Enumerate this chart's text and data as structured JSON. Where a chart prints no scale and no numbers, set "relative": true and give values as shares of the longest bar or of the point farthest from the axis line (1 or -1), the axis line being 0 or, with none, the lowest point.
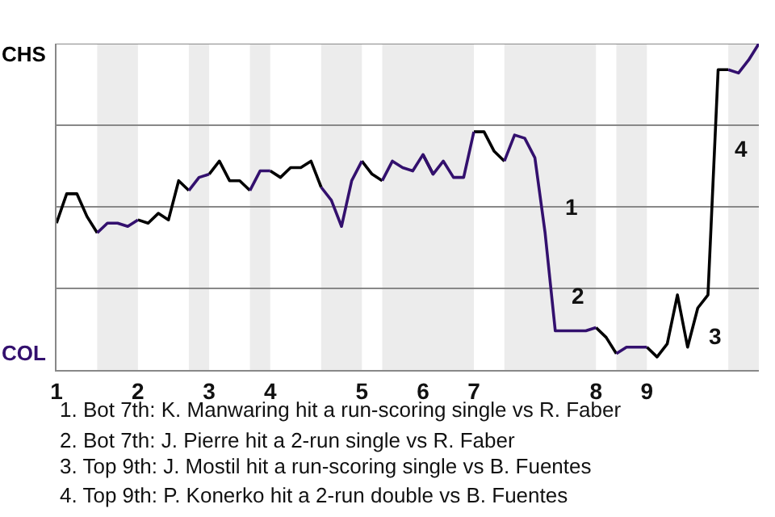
{
  "chart_data": {
    "type": "line",
    "relative": true,
    "categories": [
      "1",
      null,
      null,
      null,
      null,
      null,
      null,
      null,
      "2",
      null,
      null,
      null,
      null,
      null,
      null,
      "3",
      null,
      null,
      null,
      null,
      null,
      "4",
      null,
      null,
      null,
      null,
      null,
      null,
      null,
      null,
      "5",
      null,
      null,
      null,
      null,
      null,
      "6",
      null,
      null,
      null,
      null,
      "7",
      null,
      null,
      null,
      null,
      null,
      null,
      null,
      null,
      null,
      null,
      null,
      "8",
      null,
      null,
      null,
      null,
      "9",
      null,
      null,
      null,
      null,
      null,
      null,
      null,
      null,
      null,
      null,
      null
    ],
    "marker": "none",
    "line_style": "solid",
    "series": [
      {
        "color": "#000000",
        "values": [
          0.45,
          0.54,
          0.54,
          0.47,
          0.42,
          null,
          null,
          null,
          0.46,
          0.45,
          0.48,
          0.46,
          0.58,
          0.55,
          null,
          0.6,
          0.64,
          0.58,
          0.58,
          0.55,
          null,
          0.61,
          0.59,
          0.62,
          0.62,
          0.64,
          0.56,
          null,
          null,
          null,
          0.64,
          0.6,
          0.58,
          null,
          null,
          null,
          0.66,
          0.6,
          null,
          null,
          null,
          0.73,
          0.73,
          0.67,
          0.64,
          null,
          null,
          null,
          null,
          null,
          null,
          null,
          null,
          0.13,
          0.1,
          0.05,
          null,
          null,
          0.07,
          0.04,
          0.08,
          0.23,
          0.07,
          0.19,
          0.23,
          0.92,
          0.92,
          null,
          null,
          null
        ]
      },
      {
        "color": "#33106e",
        "values": [
          null,
          null,
          null,
          null,
          0.42,
          0.45,
          0.45,
          0.44,
          0.46,
          null,
          null,
          null,
          null,
          0.55,
          0.59,
          0.6,
          null,
          null,
          null,
          0.55,
          0.61,
          0.61,
          null,
          null,
          null,
          null,
          0.56,
          0.52,
          0.44,
          0.58,
          0.64,
          null,
          0.58,
          0.64,
          0.62,
          0.61,
          0.66,
          0.6,
          0.64,
          0.59,
          0.59,
          0.73,
          null,
          null,
          0.64,
          0.72,
          0.71,
          0.65,
          0.42,
          0.12,
          0.12,
          0.12,
          0.12,
          0.13,
          null,
          0.05,
          0.07,
          0.07,
          0.07,
          null,
          null,
          null,
          null,
          null,
          null,
          null,
          0.92,
          0.91,
          0.95,
          1.0
        ]
      }
    ],
    "ref_lines": [
      {
        "axis": "y",
        "value": 0.25,
        "label": null,
        "color": "#888888"
      },
      {
        "axis": "y",
        "value": 0.5,
        "label": null,
        "color": "#888888"
      },
      {
        "axis": "y",
        "value": 0.75,
        "label": null,
        "color": "#888888"
      },
      {
        "axis": "y",
        "value": 1.0,
        "label": null,
        "color": "#888888"
      }
    ],
    "annotations": [
      "CHS",
      "COL",
      "1",
      "2",
      "3",
      "4",
      "1. Bot 7th: K. Manwaring hit a run-scoring single vs R. Faber",
      "2. Bot 7th: J. Pierre hit a 2-run single vs R. Faber",
      "3. Top 9th: J. Mostil hit a run-scoring single vs B. Fuentes",
      "4. Top 9th: P. Konerko hit a 2-run double vs B. Fuentes"
    ]
  }
}
